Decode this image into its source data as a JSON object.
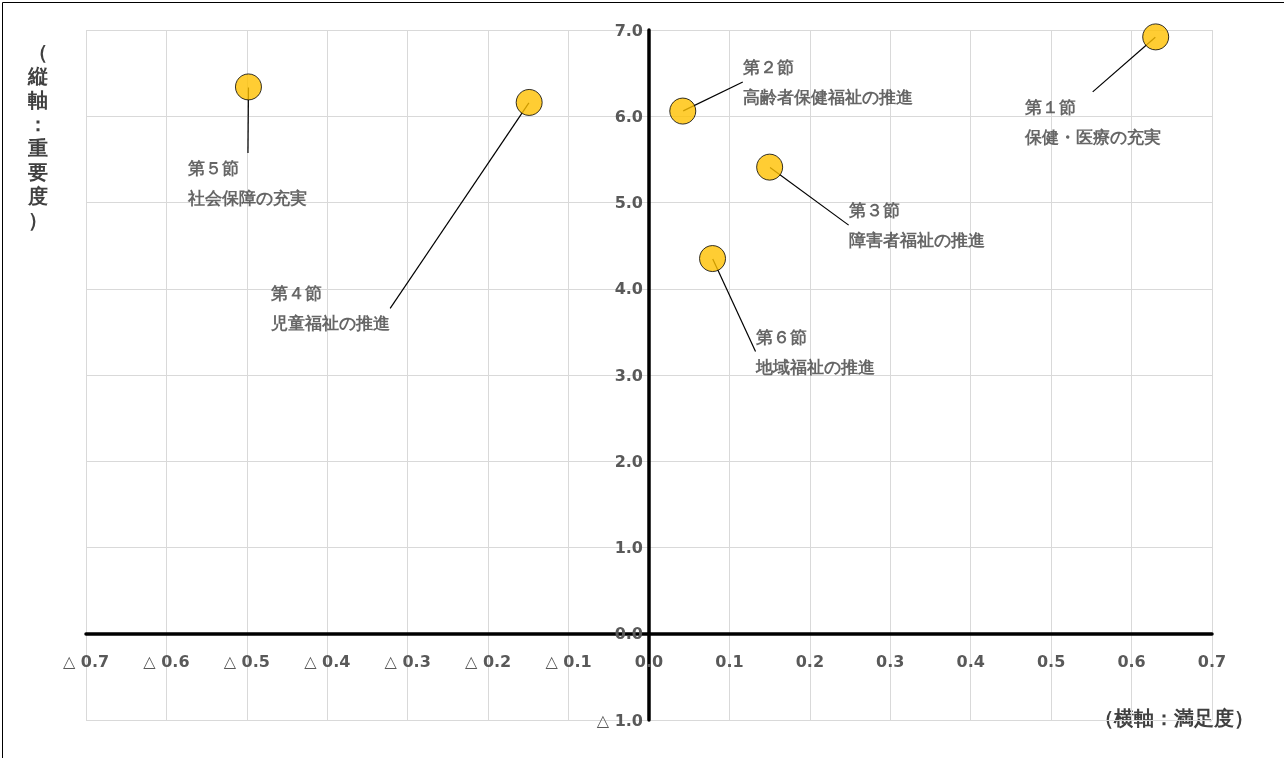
{
  "chart_data": {
    "type": "scatter",
    "xlabel": "（横軸：満足度）",
    "ylabel": "（縦軸：重要度）",
    "x": [
      0.63,
      0.042,
      0.15,
      -0.149,
      -0.498,
      0.079
    ],
    "series": [
      {
        "color": "#ffc000",
        "values": [
          6.92,
          6.06,
          5.41,
          6.16,
          6.34,
          4.35
        ]
      }
    ],
    "xlim": [
      -0.7,
      0.7
    ],
    "xticks": [
      {
        "value": -0.7,
        "label": "△ 0.7"
      },
      {
        "value": -0.6,
        "label": "△ 0.6"
      },
      {
        "value": -0.5,
        "label": "△ 0.5"
      },
      {
        "value": -0.4,
        "label": "△ 0.4"
      },
      {
        "value": -0.3,
        "label": "△ 0.3"
      },
      {
        "value": -0.2,
        "label": "△ 0.2"
      },
      {
        "value": -0.1,
        "label": "△ 0.1"
      },
      {
        "value": 0,
        "label": "0.0"
      },
      0.1,
      0.2,
      0.3,
      0.4,
      0.5,
      0.6,
      0.7
    ],
    "ylim": [
      -1,
      7
    ],
    "yticks": [
      {
        "value": -1,
        "label": "△ 1.0"
      },
      {
        "value": 0,
        "label": "0.0"
      },
      {
        "value": 1,
        "label": "1.0"
      },
      {
        "value": 2,
        "label": "2.0"
      },
      {
        "value": 3,
        "label": "3.0"
      },
      {
        "value": 4,
        "label": "4.0"
      },
      {
        "value": 5,
        "label": "5.0"
      },
      {
        "value": 6,
        "label": "6.0"
      },
      {
        "value": 7,
        "label": "7.0"
      }
    ],
    "annotations": [
      {
        "text": "第１節保健・医療の充実",
        "x": 0.63,
        "y": 6.92
      },
      {
        "text": "第２節高齢者保健福祉の推進",
        "x": 0.042,
        "y": 6.06
      },
      {
        "text": "第３節障害者福祉の推進",
        "x": 0.15,
        "y": 5.41
      },
      {
        "text": "第４節児童福祉の推進",
        "x": -0.149,
        "y": 6.16
      },
      {
        "text": "第５節社会保障の充実",
        "x": -0.498,
        "y": 6.34
      },
      {
        "text": "第６節地域福祉の推進",
        "x": 0.079,
        "y": 4.35
      }
    ],
    "grid": true,
    "marker": "circle"
  }
}
